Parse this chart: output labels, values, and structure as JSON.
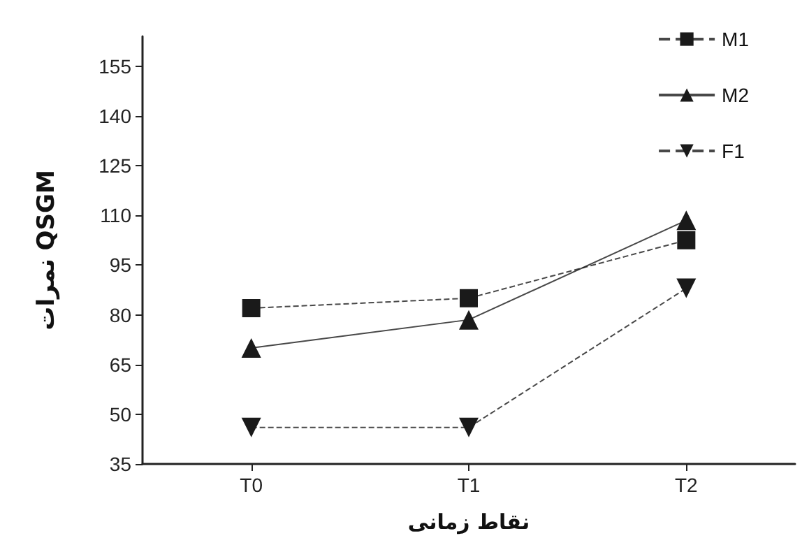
{
  "chart_data": {
    "type": "line",
    "xlabel": "نقاط زمانی",
    "ylabel": "نمرات QSGM",
    "categories": [
      "T0",
      "T1",
      "T2"
    ],
    "series": [
      {
        "name": "M1",
        "color": "#1a1a1a",
        "values": [
          82,
          85,
          102.5
        ],
        "marker": "square",
        "line_style": "dashed"
      },
      {
        "name": "M2",
        "color": "#1a1a1a",
        "values": [
          70,
          78.5,
          108.5
        ],
        "marker": "triangle",
        "line_style": "solid"
      },
      {
        "name": "F1",
        "color": "#1a1a1a",
        "values": [
          46,
          46,
          88
        ],
        "marker": "triangle-down",
        "line_style": "dashed"
      }
    ],
    "ylim": [
      35,
      164
    ],
    "yticks": [
      35,
      50,
      65,
      80,
      95,
      110,
      125,
      140,
      155
    ],
    "grid": false,
    "legend": "top right"
  }
}
